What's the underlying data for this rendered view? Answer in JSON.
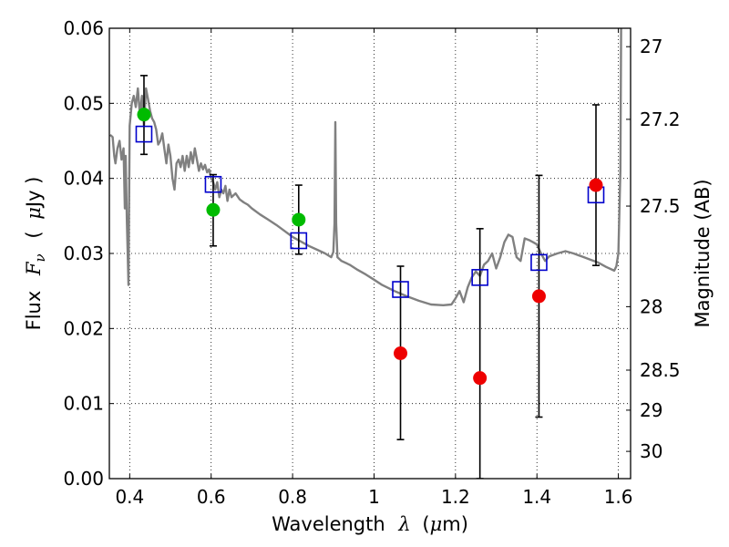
{
  "chart_data": {
    "type": "scatter",
    "xlabel": {
      "text": "Wavelength",
      "symbol": "λ",
      "unit_open": "(",
      "unit_mu": "μ",
      "unit_rest": "m)"
    },
    "ylabel": {
      "text": "Flux",
      "symbol": "F",
      "subscript": "ν",
      "unit_open": "(",
      "unit_mu": "μ",
      "unit_rest": "Jy )"
    },
    "y2label": "Magnitude (AB)",
    "xlim": [
      0.35,
      1.63
    ],
    "ylim": [
      0.0,
      0.06
    ],
    "xticks": [
      0.4,
      0.6,
      0.8,
      1.0,
      1.2,
      1.4,
      1.6
    ],
    "xtick_labels": [
      "0.4",
      "0.6",
      "0.8",
      "1",
      "1.2",
      "1.4",
      "1.6"
    ],
    "yticks": [
      0.0,
      0.01,
      0.02,
      0.03,
      0.04,
      0.05,
      0.06
    ],
    "ytick_labels": [
      "0.00",
      "0.01",
      "0.02",
      "0.03",
      "0.04",
      "0.05",
      "0.06"
    ],
    "y2ticks": [
      27,
      27.2,
      27.5,
      28,
      28.5,
      29,
      30
    ],
    "y2tick_labels": [
      "27",
      "27.2",
      "27.5",
      "28",
      "28.5",
      "29",
      "30"
    ],
    "grid": true,
    "colors": {
      "template": "#808080",
      "model": "#0000cc",
      "green": "#00bb00",
      "red": "#ee0000",
      "errorbar": "#000000"
    },
    "template_spectrum": {
      "x": [
        0.352,
        0.358,
        0.362,
        0.365,
        0.37,
        0.375,
        0.38,
        0.385,
        0.388,
        0.39,
        0.393,
        0.397,
        0.4,
        0.405,
        0.41,
        0.415,
        0.42,
        0.425,
        0.43,
        0.435,
        0.44,
        0.445,
        0.45,
        0.455,
        0.46,
        0.465,
        0.47,
        0.475,
        0.48,
        0.485,
        0.49,
        0.495,
        0.5,
        0.505,
        0.51,
        0.515,
        0.52,
        0.525,
        0.53,
        0.535,
        0.54,
        0.545,
        0.55,
        0.555,
        0.56,
        0.565,
        0.57,
        0.575,
        0.58,
        0.585,
        0.59,
        0.595,
        0.6,
        0.605,
        0.61,
        0.615,
        0.62,
        0.625,
        0.63,
        0.635,
        0.64,
        0.645,
        0.65,
        0.66,
        0.67,
        0.68,
        0.69,
        0.7,
        0.72,
        0.74,
        0.76,
        0.78,
        0.8,
        0.82,
        0.84,
        0.86,
        0.88,
        0.895,
        0.9,
        0.903,
        0.905,
        0.907,
        0.91,
        0.92,
        0.94,
        0.96,
        0.98,
        1.0,
        1.02,
        1.05,
        1.08,
        1.11,
        1.14,
        1.17,
        1.19,
        1.2,
        1.21,
        1.22,
        1.23,
        1.24,
        1.25,
        1.26,
        1.27,
        1.28,
        1.29,
        1.3,
        1.31,
        1.32,
        1.33,
        1.34,
        1.35,
        1.36,
        1.37,
        1.38,
        1.39,
        1.4,
        1.41,
        1.42,
        1.43,
        1.45,
        1.47,
        1.49,
        1.51,
        1.53,
        1.55,
        1.57,
        1.59,
        1.595,
        1.6,
        1.605,
        1.607
      ],
      "y": [
        0.0458,
        0.0455,
        0.043,
        0.042,
        0.044,
        0.045,
        0.0425,
        0.044,
        0.036,
        0.043,
        0.0345,
        0.0258,
        0.047,
        0.05,
        0.051,
        0.0495,
        0.052,
        0.0485,
        0.051,
        0.047,
        0.052,
        0.0505,
        0.049,
        0.048,
        0.0475,
        0.0465,
        0.0445,
        0.045,
        0.046,
        0.044,
        0.042,
        0.0445,
        0.043,
        0.04,
        0.0385,
        0.042,
        0.0425,
        0.0415,
        0.043,
        0.041,
        0.043,
        0.0415,
        0.0435,
        0.042,
        0.044,
        0.0425,
        0.041,
        0.042,
        0.0412,
        0.0418,
        0.0408,
        0.0412,
        0.04,
        0.0395,
        0.0385,
        0.0395,
        0.0375,
        0.0385,
        0.038,
        0.039,
        0.037,
        0.0385,
        0.0375,
        0.038,
        0.0372,
        0.0368,
        0.0365,
        0.036,
        0.0352,
        0.0345,
        0.0338,
        0.033,
        0.0322,
        0.0316,
        0.031,
        0.0305,
        0.03,
        0.0295,
        0.0302,
        0.034,
        0.0475,
        0.034,
        0.0295,
        0.029,
        0.0285,
        0.0278,
        0.0272,
        0.0265,
        0.0258,
        0.025,
        0.0243,
        0.0237,
        0.0232,
        0.0231,
        0.0232,
        0.024,
        0.025,
        0.0235,
        0.0255,
        0.0268,
        0.0276,
        0.027,
        0.0285,
        0.029,
        0.03,
        0.028,
        0.0295,
        0.0315,
        0.0325,
        0.0322,
        0.0295,
        0.029,
        0.032,
        0.0318,
        0.0315,
        0.0312,
        0.03,
        0.029,
        0.0296,
        0.03,
        0.0303,
        0.03,
        0.0296,
        0.0292,
        0.0288,
        0.0282,
        0.0277,
        0.0283,
        0.03,
        0.041,
        0.062
      ]
    },
    "model_points": {
      "x": [
        0.435,
        0.605,
        0.815,
        1.065,
        1.26,
        1.405,
        1.545
      ],
      "y": [
        0.0459,
        0.0392,
        0.0317,
        0.0252,
        0.0268,
        0.0288,
        0.0378
      ]
    },
    "green_points": {
      "x": [
        0.435,
        0.605,
        0.815
      ],
      "y": [
        0.0485,
        0.0358,
        0.0345
      ]
    },
    "red_points": {
      "x": [
        1.065,
        1.26,
        1.405,
        1.545
      ],
      "y": [
        0.0167,
        0.0134,
        0.0243,
        0.0391
      ]
    },
    "error_bars": {
      "x": [
        0.435,
        0.605,
        0.815,
        1.065,
        1.26,
        1.405,
        1.545
      ],
      "low": [
        0.0432,
        0.031,
        0.0299,
        0.0052,
        0.0,
        0.0082,
        0.0284
      ],
      "high": [
        0.0537,
        0.0405,
        0.0391,
        0.0283,
        0.0333,
        0.0404,
        0.0498
      ]
    }
  }
}
